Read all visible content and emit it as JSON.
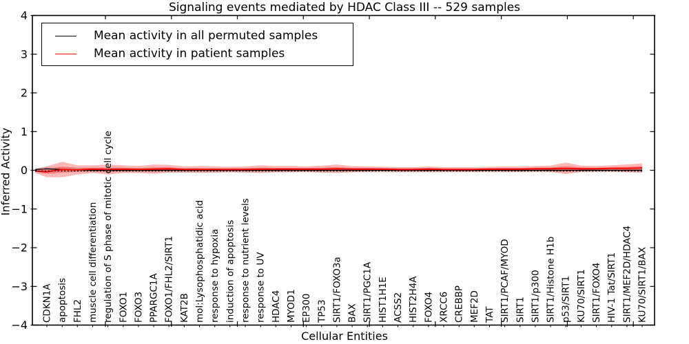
{
  "page": {
    "background": "#ffffff"
  },
  "chart_data": {
    "type": "line",
    "title": "Signaling events mediated by HDAC Class III -- 529 samples",
    "xlabel": "Cellular Entities",
    "ylabel": "Inferred Activity",
    "ylim": [
      -4,
      4
    ],
    "yticks": [
      4,
      3,
      2,
      1,
      0,
      -1,
      -2,
      -3,
      -4
    ],
    "grid": false,
    "legend_position": "upper left",
    "categories": [
      "CDKN1A",
      "apoptosis",
      "FHL2",
      "muscle cell differentiation",
      "regulation of S phase of mitotic cell cycle",
      "FOXO1",
      "FOXO3",
      "PPARGC1A",
      "FOXO1/FHL2/SIRT1",
      "KAT2B",
      "mol:Lysophosphatidic acid",
      "response to hypoxia",
      "induction of apoptosis",
      "response to nutrient levels",
      "response to UV",
      "HDAC4",
      "MYOD1",
      "EP300",
      "TP53",
      "SIRT1/FOXO3a",
      "BAX",
      "SIRT1/PGC1A",
      "HIST1H1E",
      "ACSS2",
      "HIST2H4A",
      "FOXO4",
      "XRCC6",
      "CREBBP",
      "MEF2D",
      "TAT",
      "SIRT1/PCAF/MYOD",
      "SIRT1",
      "SIRT1/p300",
      "SIRT1/Histone H1b",
      "p53/SIRT1",
      "KU70/SIRT1",
      "SIRT1/FOXO4",
      "HIV-1 Tat/SIRT1",
      "SIRT1/MEF2D/HDAC4",
      "KU70/SIRT1/BAX"
    ],
    "series": [
      {
        "name": "Mean activity in all permuted samples",
        "color": "#000000",
        "band_color": "rgba(0,0,0,0.10)",
        "mean": [
          0.04,
          0.02,
          0.01,
          0.0,
          0.0,
          0.0,
          0.0,
          0.0,
          0.0,
          0.0,
          0.0,
          0.0,
          0.0,
          0.0,
          0.0,
          0.0,
          0.0,
          0.0,
          0.0,
          0.0,
          0.0,
          0.0,
          0.0,
          0.0,
          0.0,
          0.0,
          0.0,
          0.0,
          0.0,
          0.0,
          0.0,
          0.0,
          0.0,
          0.0,
          0.0,
          0.0,
          0.0,
          0.0,
          0.0,
          0.0
        ],
        "std": [
          0.06,
          0.06,
          0.06,
          0.06,
          0.06,
          0.06,
          0.06,
          0.06,
          0.06,
          0.06,
          0.06,
          0.06,
          0.06,
          0.06,
          0.06,
          0.06,
          0.06,
          0.06,
          0.06,
          0.06,
          0.06,
          0.07,
          0.07,
          0.07,
          0.07,
          0.07,
          0.06,
          0.06,
          0.06,
          0.06,
          0.06,
          0.06,
          0.06,
          0.06,
          0.06,
          0.06,
          0.06,
          0.06,
          0.06,
          0.06
        ]
      },
      {
        "name": "Mean activity in patient samples",
        "color": "#ff0000",
        "band_color": "rgba(255,0,0,0.28)",
        "mean": [
          -0.04,
          0.02,
          0.01,
          0.03,
          0.02,
          0.03,
          0.02,
          0.03,
          0.04,
          0.02,
          0.02,
          0.02,
          0.02,
          0.02,
          0.03,
          0.03,
          0.03,
          0.03,
          0.03,
          0.04,
          0.03,
          0.03,
          0.03,
          0.02,
          0.02,
          0.03,
          0.02,
          0.02,
          0.02,
          0.03,
          0.03,
          0.03,
          0.04,
          0.04,
          0.05,
          0.04,
          0.04,
          0.05,
          0.05,
          0.06
        ],
        "std": [
          0.14,
          0.2,
          0.12,
          0.1,
          0.13,
          0.1,
          0.09,
          0.12,
          0.1,
          0.08,
          0.09,
          0.08,
          0.07,
          0.08,
          0.1,
          0.08,
          0.08,
          0.07,
          0.09,
          0.11,
          0.08,
          0.07,
          0.06,
          0.06,
          0.06,
          0.07,
          0.06,
          0.06,
          0.06,
          0.06,
          0.07,
          0.07,
          0.07,
          0.08,
          0.15,
          0.08,
          0.07,
          0.08,
          0.1,
          0.12
        ]
      }
    ],
    "zero_line": {
      "style": "dotted",
      "color": "#000000"
    }
  }
}
